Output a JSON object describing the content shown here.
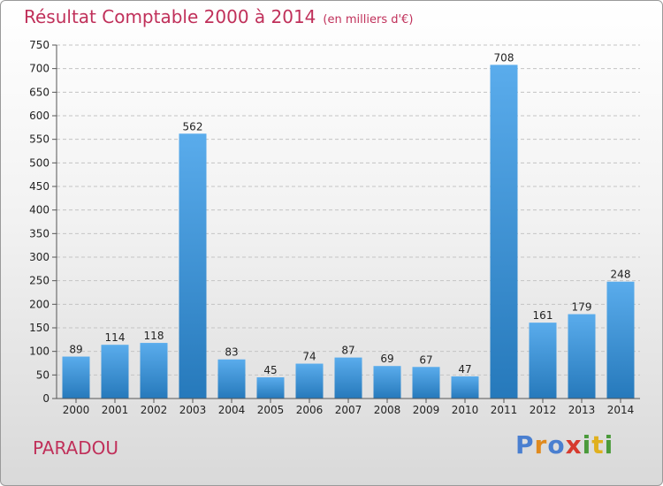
{
  "header": {
    "title": "Résultat Comptable 2000 à 2014",
    "unit": "(en milliers d'€)"
  },
  "footer": {
    "commune": "PARADOU",
    "logo": [
      "P",
      "r",
      "o",
      "x",
      "i",
      "t",
      "i"
    ]
  },
  "colors": {
    "title": "#c0305a",
    "bar_top": "#5aacec",
    "bar_bottom": "#2679bb",
    "logo": [
      "#4a7fd0",
      "#e08a1e",
      "#4a7fd0",
      "#d63a2e",
      "#4a9a3a",
      "#e0b01e",
      "#4a9a3a"
    ]
  },
  "chart_data": {
    "type": "bar",
    "title": "Résultat Comptable 2000 à 2014",
    "subtitle": "(en milliers d'€)",
    "categories": [
      "2000",
      "2001",
      "2002",
      "2003",
      "2004",
      "2005",
      "2006",
      "2007",
      "2008",
      "2009",
      "2010",
      "2011",
      "2012",
      "2013",
      "2014"
    ],
    "values": [
      89,
      114,
      118,
      562,
      83,
      45,
      74,
      87,
      69,
      67,
      47,
      708,
      161,
      179,
      248
    ],
    "ylim": [
      0,
      750
    ],
    "yticks": [
      0,
      50,
      100,
      150,
      200,
      250,
      300,
      350,
      400,
      450,
      500,
      550,
      600,
      650,
      700,
      750
    ],
    "grid": true,
    "legend": "none"
  }
}
